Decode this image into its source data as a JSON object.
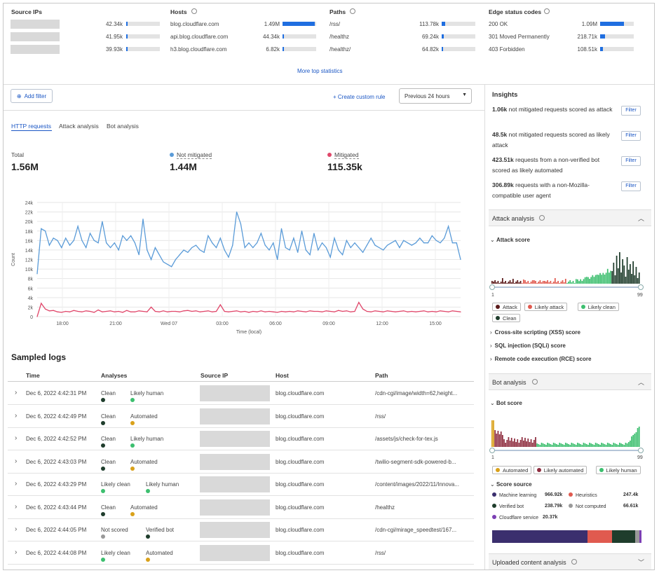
{
  "top_stats": {
    "source_ips": {
      "title": "Source IPs",
      "rows": [
        {
          "value": "42.34k",
          "pct": 0.03
        },
        {
          "value": "41.95k",
          "pct": 0.03
        },
        {
          "value": "39.93k",
          "pct": 0.03
        }
      ]
    },
    "hosts": {
      "title": "Hosts",
      "rows": [
        {
          "name": "blog.cloudflare.com",
          "value": "1.49M",
          "pct": 0.95
        },
        {
          "name": "api.blog.cloudflare.com",
          "value": "44.34k",
          "pct": 0.04
        },
        {
          "name": "h3.blog.cloudflare.com",
          "value": "6.82k",
          "pct": 0.01
        }
      ]
    },
    "paths": {
      "title": "Paths",
      "rows": [
        {
          "name": "/rss/",
          "value": "113.78k",
          "pct": 0.1
        },
        {
          "name": "/healthz",
          "value": "69.24k",
          "pct": 0.06
        },
        {
          "name": "/healthz/",
          "value": "64.82k",
          "pct": 0.05
        }
      ]
    },
    "edge_status": {
      "title": "Edge status codes",
      "rows": [
        {
          "name": "200 OK",
          "value": "1.09M",
          "pct": 0.7
        },
        {
          "name": "301 Moved Permanently",
          "value": "218.71k",
          "pct": 0.15
        },
        {
          "name": "403 Forbidden",
          "value": "108.51k",
          "pct": 0.08
        }
      ]
    },
    "more_link": "More top statistics"
  },
  "toolbar": {
    "add_filter": "Add filter",
    "create_rule": "Create custom rule",
    "time_range": "Previous 24 hours"
  },
  "tabs": [
    "HTTP requests",
    "Attack analysis",
    "Bot analysis"
  ],
  "totals": {
    "total_label": "Total",
    "total_value": "1.56M",
    "not_mitigated_label": "Not mitigated",
    "not_mitigated_value": "1.44M",
    "mitigated_label": "Mitigated",
    "mitigated_value": "115.35k"
  },
  "colors": {
    "blue": "#5a9bd8",
    "red": "#e0476a",
    "accent": "#1f6ee0",
    "attack": "#5b1a1a",
    "likely_attack": "#e05a4f",
    "likely_clean": "#3dbf6f",
    "clean": "#1f3d2c"
  },
  "chart_data": {
    "type": "line",
    "ylabel": "Count",
    "xlabel": "Time (local)",
    "y_ticks": [
      "0",
      "2k",
      "4k",
      "6k",
      "8k",
      "10k",
      "12k",
      "14k",
      "16k",
      "18k",
      "20k",
      "22k",
      "24k"
    ],
    "x_ticks": [
      "18:00",
      "21:00",
      "Wed 07",
      "03:00",
      "06:00",
      "09:00",
      "12:00",
      "15:00"
    ],
    "ylim": [
      0,
      24000
    ],
    "series": [
      {
        "name": "Not mitigated",
        "values": [
          9000,
          18500,
          18000,
          15000,
          16500,
          16000,
          14500,
          16500,
          15000,
          16000,
          19000,
          16000,
          14500,
          17500,
          16000,
          15500,
          20000,
          15500,
          14500,
          15500,
          14000,
          17000,
          16000,
          17000,
          15500,
          13000,
          20500,
          14000,
          12000,
          14500,
          13000,
          11500,
          11000,
          10500,
          12000,
          13000,
          14000,
          13500,
          14500,
          15000,
          14000,
          13500,
          17000,
          15500,
          14500,
          16500,
          14000,
          12500,
          15000,
          22000,
          19500,
          14500,
          15500,
          14500,
          15500,
          17500,
          15000,
          14000,
          15500,
          12000,
          18500,
          14500,
          14000,
          16500,
          13500,
          18000,
          14000,
          13000,
          17500,
          14000,
          15500,
          14500,
          12500,
          16500,
          14000,
          13000,
          16000,
          14500,
          15500,
          14500,
          13500,
          15000,
          16500,
          15000,
          14500,
          14000,
          15000,
          15500,
          16000,
          14500,
          16000,
          15500,
          15000,
          15500,
          16500,
          15500,
          15500,
          17000,
          16000,
          15500,
          16500,
          19000,
          15500,
          15500,
          12000
        ]
      },
      {
        "name": "Mitigated",
        "values": [
          0,
          2800,
          1600,
          1200,
          1300,
          1000,
          900,
          1100,
          1000,
          1300,
          1100,
          1000,
          1200,
          1100,
          900,
          1400,
          1000,
          1100,
          1200,
          1000,
          1100,
          900,
          1300,
          1000,
          1000,
          1200,
          1100,
          1000,
          2000,
          1100,
          1000,
          1200,
          1000,
          1100,
          1100,
          1000,
          1200,
          1300,
          1100,
          1200,
          1000,
          1100,
          1200,
          1000,
          1100,
          2500,
          1100,
          1000,
          1100,
          1200,
          1000,
          1100,
          900,
          1100,
          1000,
          1200,
          1000,
          1100,
          1000,
          900,
          1100,
          1000,
          1100,
          1000,
          1200,
          1100,
          1000,
          1200,
          1100,
          1100,
          1000,
          1200,
          1100,
          1000,
          1300,
          1100,
          1200,
          1000,
          1100,
          3000,
          1600,
          1100,
          1000,
          1200,
          1100,
          1000,
          1200,
          1100,
          1000,
          1100,
          1200,
          1000,
          1100,
          1000,
          1100,
          1200,
          1000,
          1100,
          1000,
          1200,
          1100,
          1000,
          1200,
          1100,
          1000
        ]
      }
    ]
  },
  "sampled_logs": {
    "title": "Sampled logs",
    "columns": [
      "Time",
      "Analyses",
      "Source IP",
      "Host",
      "Path"
    ],
    "rows": [
      {
        "time": "Dec 6, 2022 4:42:31 PM",
        "a1": "Clean",
        "c1": "#1f3d2c",
        "a2": "Likely human",
        "c2": "#3dbf6f",
        "host": "blog.cloudflare.com",
        "path": "/cdn-cgi/image/width=62,height..."
      },
      {
        "time": "Dec 6, 2022 4:42:49 PM",
        "a1": "Clean",
        "c1": "#1f3d2c",
        "a2": "Automated",
        "c2": "#d9a11a",
        "host": "blog.cloudflare.com",
        "path": "/rss/"
      },
      {
        "time": "Dec 6, 2022 4:42:52 PM",
        "a1": "Clean",
        "c1": "#1f3d2c",
        "a2": "Likely human",
        "c2": "#3dbf6f",
        "host": "blog.cloudflare.com",
        "path": "/assets/js/check-for-tex.js"
      },
      {
        "time": "Dec 6, 2022 4:43:03 PM",
        "a1": "Clean",
        "c1": "#1f3d2c",
        "a2": "Automated",
        "c2": "#d9a11a",
        "host": "blog.cloudflare.com",
        "path": "/twilio-segment-sdk-powered-b..."
      },
      {
        "time": "Dec 6, 2022 4:43:29 PM",
        "a1": "Likely clean",
        "c1": "#3dbf6f",
        "a2": "Likely human",
        "c2": "#3dbf6f",
        "host": "blog.cloudflare.com",
        "path": "/content/images/2022/11/Innova..."
      },
      {
        "time": "Dec 6, 2022 4:43:44 PM",
        "a1": "Clean",
        "c1": "#1f3d2c",
        "a2": "Automated",
        "c2": "#d9a11a",
        "host": "blog.cloudflare.com",
        "path": "/healthz"
      },
      {
        "time": "Dec 6, 2022 4:44:05 PM",
        "a1": "Not scored",
        "c1": "#999999",
        "a2": "Verified bot",
        "c2": "#1f3d2c",
        "host": "blog.cloudflare.com",
        "path": "/cdn-cgi/mirage_speedtest/167..."
      },
      {
        "time": "Dec 6, 2022 4:44:08 PM",
        "a1": "Likely clean",
        "c1": "#3dbf6f",
        "a2": "Automated",
        "c2": "#d9a11a",
        "host": "blog.cloudflare.com",
        "path": "/rss/"
      }
    ]
  },
  "insights": {
    "title": "Insights",
    "filter_label": "Filter",
    "items": [
      {
        "bold": "1.06k",
        "text": "not mitigated requests scored as attack"
      },
      {
        "bold": "48.5k",
        "text": "not mitigated requests scored as likely attack"
      },
      {
        "bold": "423.51k",
        "text": "requests from a non-verified bot scored as likely automated"
      },
      {
        "bold": "306.89k",
        "text": "requests with a non-Mozilla-compatible user agent"
      }
    ]
  },
  "attack_analysis": {
    "title": "Attack analysis",
    "score_label": "Attack score",
    "range_min": "1",
    "range_max": "99",
    "legend": [
      "Attack",
      "Likely attack",
      "Likely clean",
      "Clean"
    ],
    "sub_items": [
      "Cross-site scripting (XSS) score",
      "SQL injection (SQLi) score",
      "Remote code execution (RCE) score"
    ]
  },
  "bot_analysis": {
    "title": "Bot analysis",
    "score_label": "Bot score",
    "range_min": "1",
    "range_max": "99",
    "legend": [
      "Automated",
      "Likely automated",
      "Likely human"
    ],
    "score_source_label": "Score source",
    "sources": [
      {
        "name": "Machine learning",
        "value": "966.92k",
        "color": "#3b2f6e"
      },
      {
        "name": "Heuristics",
        "value": "247.4k",
        "color": "#e05a4f"
      },
      {
        "name": "Verified bot",
        "value": "238.79k",
        "color": "#1f3d2c"
      },
      {
        "name": "Not computed",
        "value": "66.61k",
        "color": "#999999"
      },
      {
        "name": "Cloudflare service",
        "value": "20.37k",
        "color": "#7b3fb3"
      }
    ],
    "source_bar": [
      0.64,
      0.163,
      0.157,
      0.028,
      0.012
    ]
  },
  "uploaded": {
    "title": "Uploaded content analysis"
  }
}
